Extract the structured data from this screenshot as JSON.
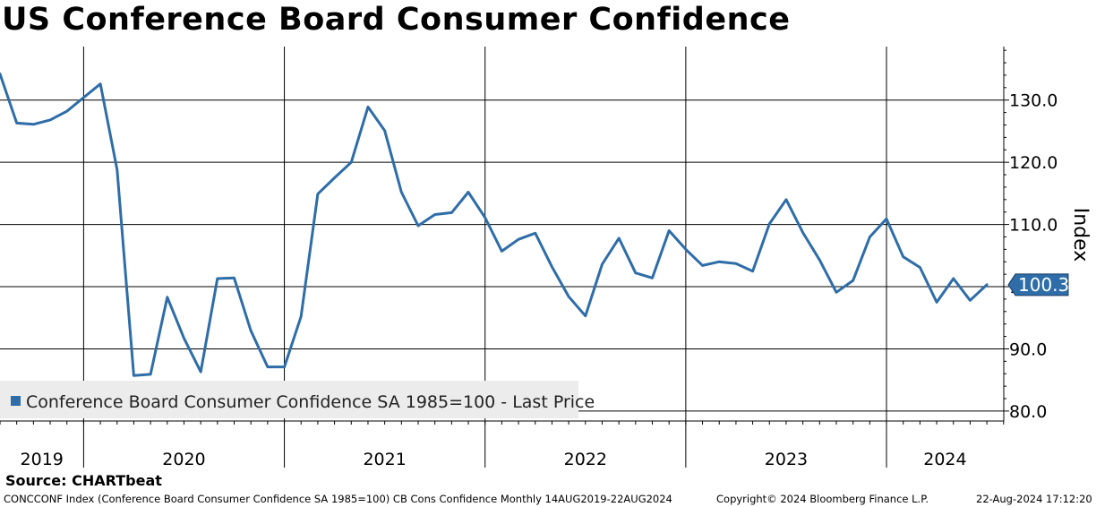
{
  "chart_data": {
    "type": "line",
    "title": "US Conference Board Consumer Confidence",
    "ylabel": "Index",
    "ylim": [
      78.4,
      138.6
    ],
    "yticks": [
      80,
      90,
      100,
      110,
      120,
      130
    ],
    "ytick_labels": [
      "80.0",
      "90.0",
      "100.0",
      "110.0",
      "120.0",
      "130.0"
    ],
    "x_year_labels": [
      "2019",
      "2020",
      "2021",
      "2022",
      "2023",
      "2024"
    ],
    "last_value": 100.3,
    "last_value_label": "100.3",
    "legend": "Conference Board Consumer Confidence SA 1985=100 - Last Price",
    "legend_position": "bottom-left",
    "series": [
      {
        "name": "Conference Board Consumer Confidence SA 1985=100 - Last Price",
        "color": "#2e6da8",
        "x": [
          "2019-08",
          "2019-09",
          "2019-10",
          "2019-11",
          "2019-12",
          "2020-01",
          "2020-02",
          "2020-03",
          "2020-04",
          "2020-05",
          "2020-06",
          "2020-07",
          "2020-08",
          "2020-09",
          "2020-10",
          "2020-11",
          "2020-12",
          "2021-01",
          "2021-02",
          "2021-03",
          "2021-04",
          "2021-05",
          "2021-06",
          "2021-07",
          "2021-08",
          "2021-09",
          "2021-10",
          "2021-11",
          "2021-12",
          "2022-01",
          "2022-02",
          "2022-03",
          "2022-04",
          "2022-05",
          "2022-06",
          "2022-07",
          "2022-08",
          "2022-09",
          "2022-10",
          "2022-11",
          "2022-12",
          "2023-01",
          "2023-02",
          "2023-03",
          "2023-04",
          "2023-05",
          "2023-06",
          "2023-07",
          "2023-08",
          "2023-09",
          "2023-10",
          "2023-11",
          "2023-12",
          "2024-01",
          "2024-02",
          "2024-03",
          "2024-04",
          "2024-05",
          "2024-06",
          "2024-07"
        ],
        "values": [
          134.2,
          126.3,
          126.1,
          126.8,
          128.2,
          130.4,
          132.6,
          118.8,
          85.7,
          85.9,
          98.3,
          91.7,
          86.3,
          101.3,
          101.4,
          92.9,
          87.1,
          87.1,
          95.2,
          114.9,
          117.5,
          120.0,
          128.9,
          125.1,
          115.2,
          109.8,
          111.6,
          111.9,
          115.2,
          111.1,
          105.7,
          107.6,
          108.6,
          103.2,
          98.4,
          95.3,
          103.6,
          107.8,
          102.2,
          101.4,
          109.0,
          106.0,
          103.4,
          104.0,
          103.7,
          102.5,
          110.1,
          114.0,
          108.7,
          104.3,
          99.1,
          101.0,
          108.0,
          110.9,
          104.8,
          103.1,
          97.5,
          101.3,
          97.8,
          100.3
        ]
      }
    ]
  },
  "source": "Source: CHARTbeat",
  "footer": {
    "left": "CONCCONF Index (Conference Board Consumer Confidence SA 1985=100) CB Cons Confidence  Monthly 14AUG2019-22AUG2024",
    "copyright": "Copyright© 2024 Bloomberg Finance L.P.",
    "timestamp": "22-Aug-2024 17:12:20"
  },
  "colors": {
    "line": "#2e6da8",
    "legend_bg": "#ececec",
    "marker_border": "#1d3f66"
  }
}
